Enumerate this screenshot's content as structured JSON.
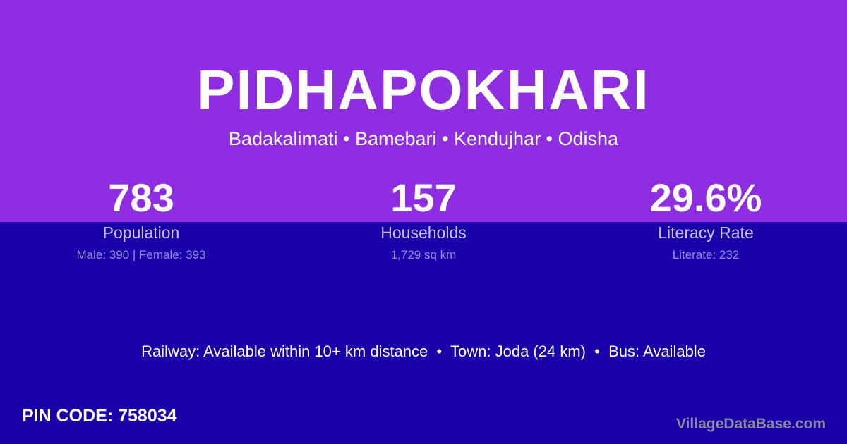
{
  "colors": {
    "top_background": "#8e2de2",
    "bottom_background": "#1a00aa",
    "text": "#ffffff",
    "label": "#c8c0f2",
    "sublabel": "#938ce2",
    "watermark": "#8a8a9c"
  },
  "header": {
    "title": "PIDHAPOKHARI",
    "location": "Badakalimati • Bamebari • Kendujhar • Odisha"
  },
  "stats": [
    {
      "value": "783",
      "label": "Population",
      "detail": "Male: 390 | Female: 393"
    },
    {
      "value": "157",
      "label": "Households",
      "detail": "1,729 sq km"
    },
    {
      "value": "29.6%",
      "label": "Literacy Rate",
      "detail": "Literate: 232"
    }
  ],
  "info_line": "Railway: Available within 10+ km distance  •  Town: Joda (24 km)  •  Bus: Available",
  "pin_code": "PIN CODE: 758034",
  "watermark": "VillageDataBase.com"
}
